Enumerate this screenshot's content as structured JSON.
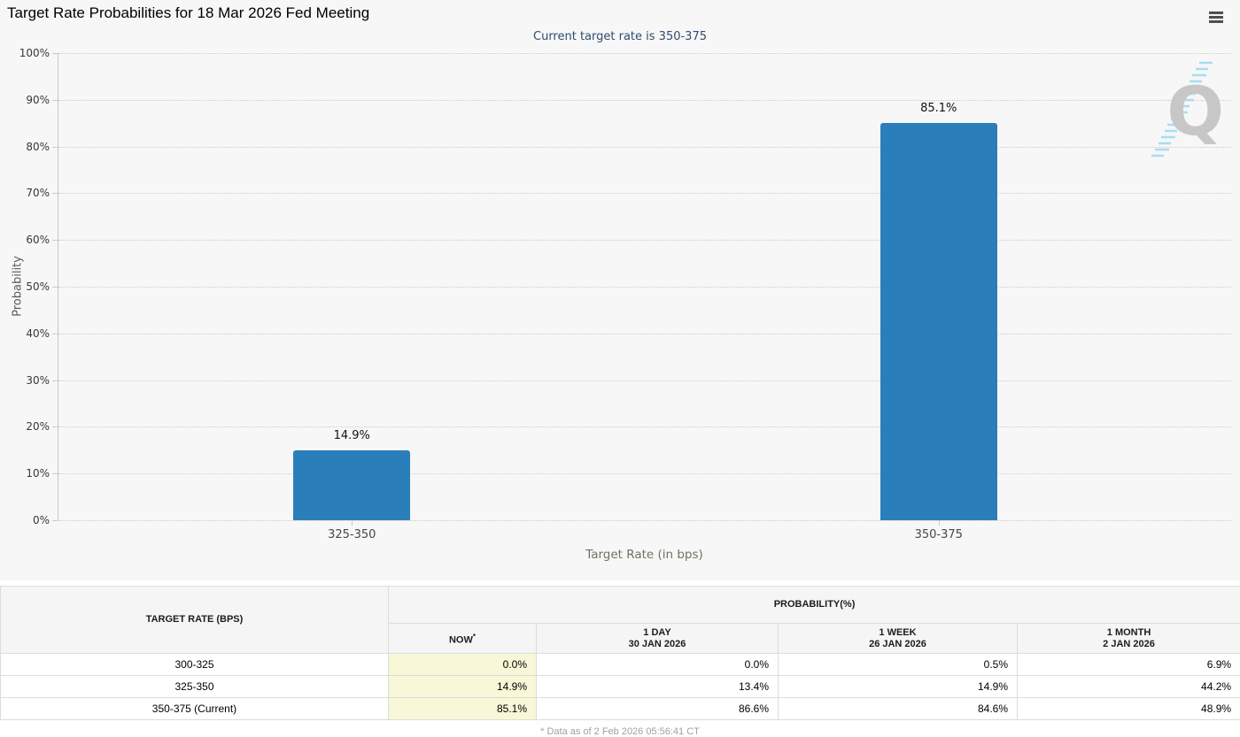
{
  "chart_data": {
    "type": "bar",
    "title": "Target Rate Probabilities for 18 Mar 2026 Fed Meeting",
    "subtitle": "Current target rate is 350-375",
    "categories": [
      "325-350",
      "350-375"
    ],
    "values": [
      14.9,
      85.1
    ],
    "value_labels": [
      "14.9%",
      "85.1%"
    ],
    "xlabel": "Target Rate (in bps)",
    "ylabel": "Probability",
    "ylim": [
      0,
      100
    ],
    "ytick_step": 10,
    "ytick_labels": [
      "0%",
      "10%",
      "20%",
      "30%",
      "40%",
      "50%",
      "60%",
      "70%",
      "80%",
      "90%",
      "100%"
    ],
    "grid": "horizontal dotted",
    "legend": "none",
    "bar_color": "#2a7fba"
  },
  "icons": {
    "chart_menu": "hamburger-icon",
    "watermark": "quikstrike-q-logo"
  },
  "watermark": {
    "letter": "Q"
  },
  "table": {
    "col1_header": "TARGET RATE (BPS)",
    "group_header": "PROBABILITY(%)",
    "columns": [
      {
        "line1": "NOW",
        "sup": "*",
        "line2": ""
      },
      {
        "line1": "1 DAY",
        "line2": "30 JAN 2026",
        "sup": ""
      },
      {
        "line1": "1 WEEK",
        "line2": "26 JAN 2026",
        "sup": ""
      },
      {
        "line1": "1 MONTH",
        "line2": "2 JAN 2026",
        "sup": ""
      }
    ],
    "rows": [
      [
        "300-325",
        "0.0%",
        "0.0%",
        "0.5%",
        "6.9%"
      ],
      [
        "325-350",
        "14.9%",
        "13.4%",
        "14.9%",
        "44.2%"
      ],
      [
        "350-375 (Current)",
        "85.1%",
        "86.6%",
        "84.6%",
        "48.9%"
      ]
    ],
    "footnote": "* Data as of 2 Feb 2026 05:56:41 CT"
  },
  "colors": {
    "chart_background": "#f7f7f7",
    "bar": "#2a7fba",
    "now_column_background": "#f8f7d8",
    "subtitle_text": "#2e4d6e",
    "gridline": "#cbcbcb"
  }
}
